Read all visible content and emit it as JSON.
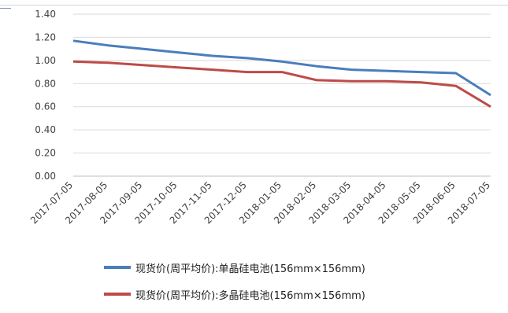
{
  "chart_data": {
    "type": "line",
    "title": "",
    "xlabel": "",
    "ylabel": "",
    "ylim": [
      0,
      1.4
    ],
    "yticks": [
      "0.00",
      "0.20",
      "0.40",
      "0.60",
      "0.80",
      "1.00",
      "1.20",
      "1.40"
    ],
    "categories": [
      "2017-07-05",
      "2017-08-05",
      "2017-09-05",
      "2017-10-05",
      "2017-11-05",
      "2017-12-05",
      "2018-01-05",
      "2018-02-05",
      "2018-03-05",
      "2018-04-05",
      "2018-05-05",
      "2018-06-05",
      "2018-07-05"
    ],
    "grid": "horizontal",
    "legend_position": "bottom",
    "series": [
      {
        "name": "现货价(周平均价):单晶硅电池(156mm×156mm)",
        "color": "#4a7ebb",
        "values": [
          1.17,
          1.13,
          1.1,
          1.07,
          1.04,
          1.02,
          0.99,
          0.95,
          0.92,
          0.91,
          0.9,
          0.89,
          0.7
        ]
      },
      {
        "name": "现货价(周平均价):多晶硅电池(156mm×156mm)",
        "color": "#be4b48",
        "values": [
          0.99,
          0.98,
          0.96,
          0.94,
          0.92,
          0.9,
          0.9,
          0.83,
          0.82,
          0.82,
          0.81,
          0.78,
          0.6
        ]
      }
    ]
  }
}
